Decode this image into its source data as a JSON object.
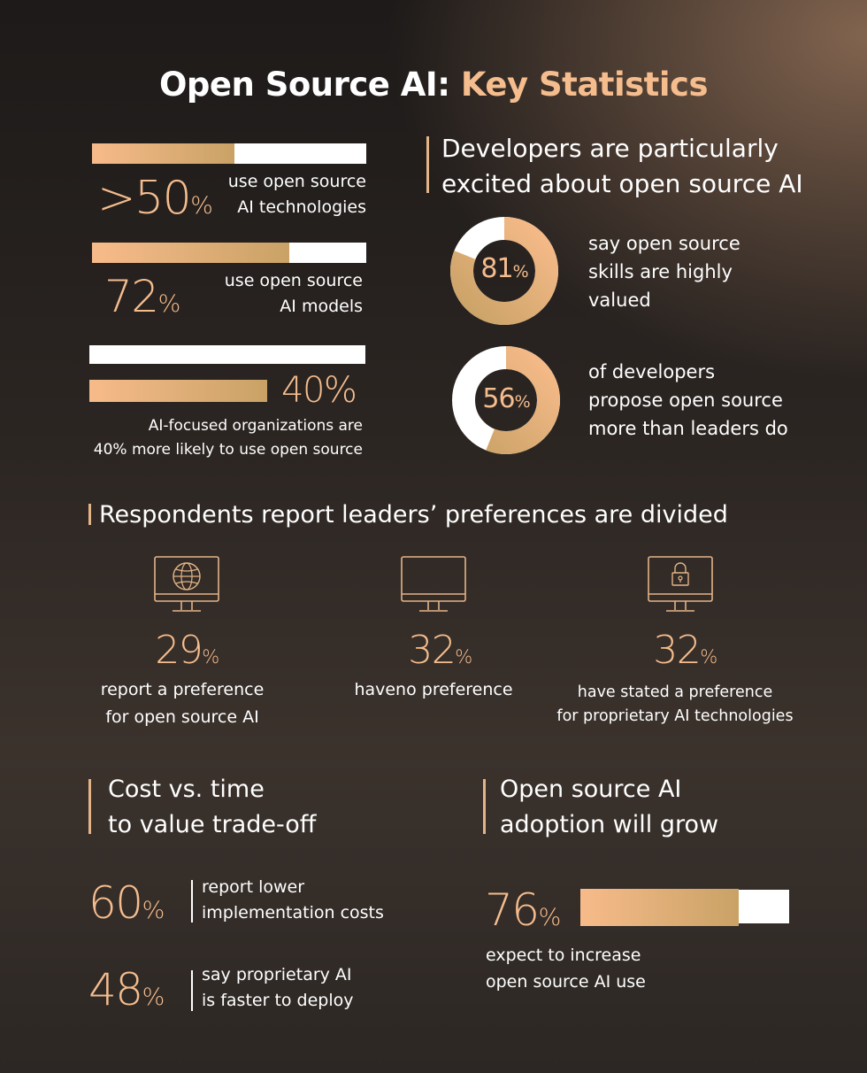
{
  "title": {
    "part1": "Open Source AI: ",
    "part2": "Key Statistics"
  },
  "left_stats": [
    {
      "value": ">50",
      "unit": "%",
      "label_lines": [
        "use open source",
        "AI technologies"
      ],
      "bar_fraction": 0.52
    },
    {
      "value": "72",
      "unit": "%",
      "label_lines": [
        "use open source",
        "AI models"
      ],
      "bar_fraction": 0.72
    },
    {
      "value": "40",
      "unit": "%",
      "label_lines": [
        "AI-focused organizations are",
        "40% more likely to use open source"
      ]
    }
  ],
  "developers": {
    "heading_lines": [
      "Developers are particularly",
      "excited about open source AI"
    ],
    "donuts": [
      {
        "value": "81",
        "unit": "%",
        "fraction": 0.81,
        "label_lines": [
          "say open source",
          "skills are highly",
          "valued"
        ]
      },
      {
        "value": "56",
        "unit": "%",
        "fraction": 0.56,
        "label_lines": [
          "of developers",
          "propose open source",
          "more than leaders do"
        ]
      }
    ]
  },
  "leaders": {
    "heading": "Respondents report leaders’ preferences are divided",
    "items": [
      {
        "icon": "globe-monitor-icon",
        "value": "29",
        "unit": "%",
        "label_lines": [
          "report a preference",
          "for open source AI"
        ]
      },
      {
        "icon": "monitor-icon",
        "value": "32",
        "unit": "%",
        "label_lines": [
          "haveno preference"
        ]
      },
      {
        "icon": "lock-monitor-icon",
        "value": "32",
        "unit": "%",
        "label_lines": [
          "have stated a preference",
          "for proprietary AI technologies"
        ]
      }
    ]
  },
  "cost": {
    "heading_lines": [
      "Cost vs. time",
      "to value trade-off"
    ],
    "stats": [
      {
        "value": "60",
        "unit": "%",
        "label_lines": [
          "report lower",
          "implementation costs"
        ]
      },
      {
        "value": "48",
        "unit": "%",
        "label_lines": [
          "say proprietary AI",
          "is faster to deploy"
        ]
      }
    ]
  },
  "growth": {
    "heading_lines": [
      "Open source AI",
      "adoption will grow"
    ],
    "value": "76",
    "unit": "%",
    "bar_fraction": 0.76,
    "label_lines": [
      "expect to increase",
      "open source AI use"
    ]
  },
  "colors": {
    "accent": "#f5bd8e",
    "gold_start": "#f7bb8a",
    "gold_end": "#c9a266",
    "white": "#ffffff"
  }
}
